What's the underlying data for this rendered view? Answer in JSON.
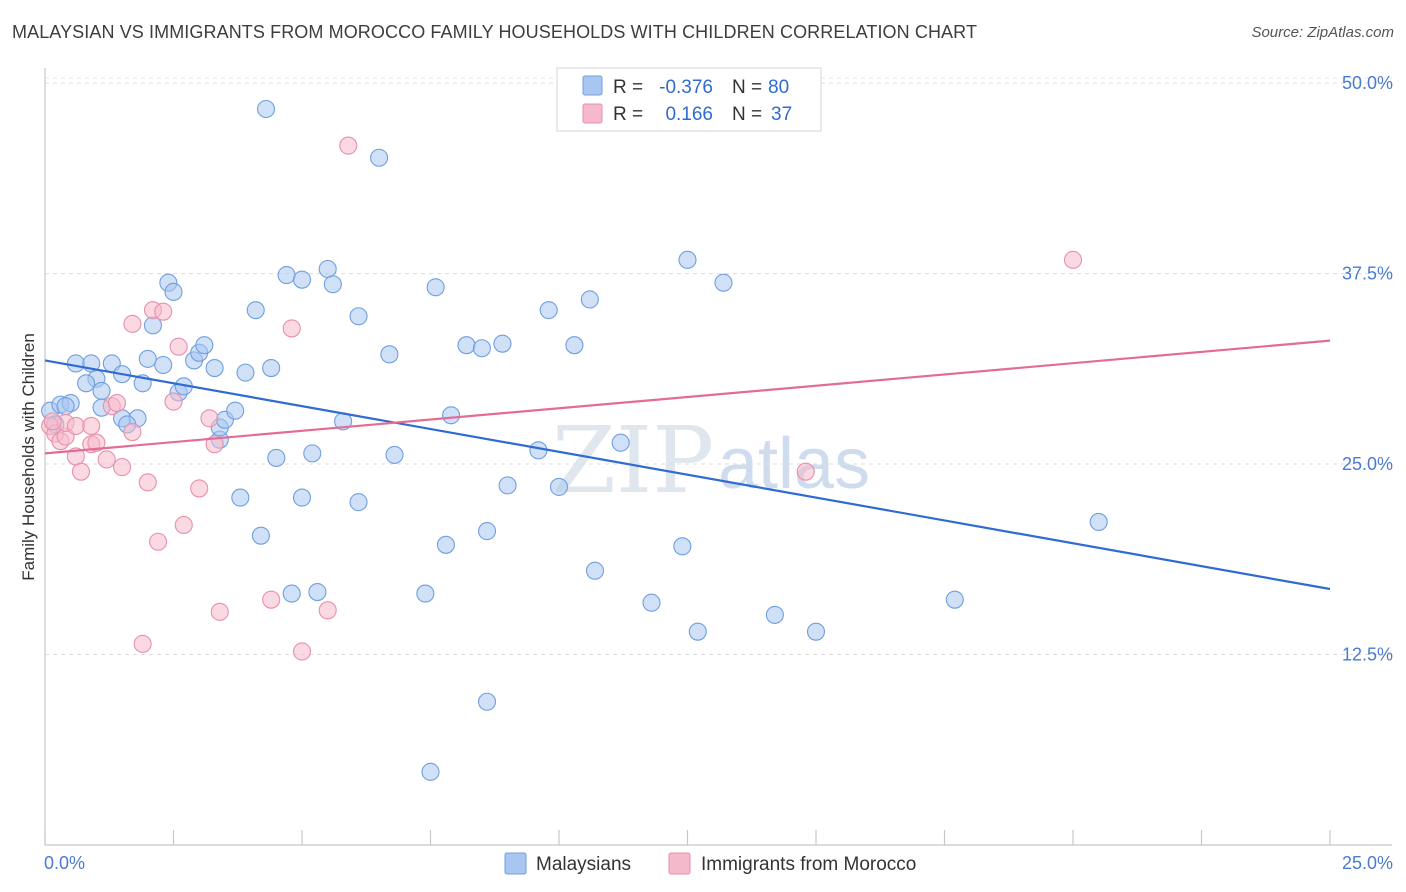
{
  "header": {
    "title": "MALAYSIAN VS IMMIGRANTS FROM MOROCCO FAMILY HOUSEHOLDS WITH CHILDREN CORRELATION CHART",
    "source": "Source: ZipAtlas.com"
  },
  "watermark": {
    "part1": "ZIP",
    "part2": "atlas"
  },
  "stats_box": {
    "rows": [
      {
        "r_label": "R =",
        "r_value": "-0.376",
        "n_label": "N =",
        "n_value": "80",
        "color": "#a9c6f0"
      },
      {
        "r_label": "R =",
        "r_value": "0.166",
        "n_label": "N =",
        "n_value": "37",
        "color": "#f6b9cb"
      }
    ]
  },
  "chart_data": {
    "type": "scatter",
    "title": "MALAYSIAN VS IMMIGRANTS FROM MOROCCO FAMILY HOUSEHOLDS WITH CHILDREN CORRELATION CHART",
    "xlabel": "",
    "ylabel": "Family Households with Children",
    "xlim": [
      0,
      25
    ],
    "ylim": [
      0,
      52.5
    ],
    "x_tick_labels": [
      "0.0%",
      "25.0%"
    ],
    "y_ticks": [
      {
        "value": 12.5,
        "label": "12.5%"
      },
      {
        "value": 25.0,
        "label": "25.0%"
      },
      {
        "value": 37.5,
        "label": "37.5%"
      },
      {
        "value": 50.0,
        "label": "50.0%"
      }
    ],
    "legend": [
      "Malaysians",
      "Immigrants from Morocco"
    ],
    "series": [
      {
        "name": "Malaysians",
        "color": "#a9c6f0",
        "stroke": "#6f9fe0",
        "trend": {
          "x": [
            0,
            25
          ],
          "y": [
            31.8,
            16.8
          ],
          "color": "#2f6bd1"
        },
        "points": [
          [
            0.1,
            28.5
          ],
          [
            0.3,
            28.9
          ],
          [
            0.5,
            29.0
          ],
          [
            0.4,
            28.8
          ],
          [
            0.6,
            31.6
          ],
          [
            0.9,
            31.6
          ],
          [
            1.0,
            30.6
          ],
          [
            1.3,
            31.6
          ],
          [
            0.8,
            30.3
          ],
          [
            1.1,
            29.8
          ],
          [
            1.1,
            28.7
          ],
          [
            1.5,
            30.9
          ],
          [
            1.9,
            30.3
          ],
          [
            1.5,
            28.0
          ],
          [
            1.8,
            28.0
          ],
          [
            2.1,
            34.1
          ],
          [
            2.0,
            31.9
          ],
          [
            2.3,
            31.5
          ],
          [
            2.4,
            36.9
          ],
          [
            2.5,
            36.3
          ],
          [
            2.6,
            29.7
          ],
          [
            2.7,
            30.1
          ],
          [
            2.9,
            31.8
          ],
          [
            3.0,
            32.3
          ],
          [
            3.1,
            32.8
          ],
          [
            3.3,
            31.3
          ],
          [
            3.4,
            26.6
          ],
          [
            3.4,
            27.4
          ],
          [
            3.5,
            27.9
          ],
          [
            3.7,
            28.5
          ],
          [
            3.8,
            22.8
          ],
          [
            3.9,
            31.0
          ],
          [
            4.1,
            35.1
          ],
          [
            4.2,
            20.3
          ],
          [
            4.3,
            48.3
          ],
          [
            4.4,
            31.3
          ],
          [
            4.5,
            25.4
          ],
          [
            4.7,
            37.4
          ],
          [
            4.8,
            16.5
          ],
          [
            5.0,
            37.1
          ],
          [
            5.0,
            22.8
          ],
          [
            5.2,
            25.7
          ],
          [
            5.3,
            16.6
          ],
          [
            5.5,
            37.8
          ],
          [
            5.6,
            36.8
          ],
          [
            5.8,
            27.8
          ],
          [
            6.1,
            34.7
          ],
          [
            6.1,
            22.5
          ],
          [
            6.5,
            45.1
          ],
          [
            6.7,
            32.2
          ],
          [
            6.8,
            25.6
          ],
          [
            7.4,
            16.5
          ],
          [
            7.5,
            4.8
          ],
          [
            7.6,
            36.6
          ],
          [
            7.8,
            19.7
          ],
          [
            7.9,
            28.2
          ],
          [
            8.2,
            32.8
          ],
          [
            8.5,
            32.6
          ],
          [
            8.6,
            20.6
          ],
          [
            8.6,
            9.4
          ],
          [
            8.9,
            32.9
          ],
          [
            9.0,
            23.6
          ],
          [
            9.6,
            25.9
          ],
          [
            9.8,
            35.1
          ],
          [
            10.0,
            23.5
          ],
          [
            10.3,
            32.8
          ],
          [
            10.6,
            35.8
          ],
          [
            10.7,
            18.0
          ],
          [
            11.2,
            26.4
          ],
          [
            11.8,
            15.9
          ],
          [
            12.4,
            19.6
          ],
          [
            12.5,
            38.4
          ],
          [
            12.7,
            14.0
          ],
          [
            13.2,
            36.9
          ],
          [
            14.2,
            15.1
          ],
          [
            15.0,
            14.0
          ],
          [
            17.7,
            16.1
          ],
          [
            20.5,
            21.2
          ],
          [
            0.2,
            27.6
          ],
          [
            1.6,
            27.6
          ]
        ]
      },
      {
        "name": "Immigrants from Morocco",
        "color": "#f6b9cb",
        "stroke": "#e98fab",
        "trend": {
          "x": [
            0,
            25
          ],
          "y": [
            25.7,
            33.1
          ],
          "color": "#e36c96"
        },
        "points": [
          [
            0.1,
            27.5
          ],
          [
            0.2,
            27.0
          ],
          [
            0.3,
            26.5
          ],
          [
            0.4,
            26.8
          ],
          [
            0.4,
            27.7
          ],
          [
            0.6,
            25.5
          ],
          [
            0.6,
            27.5
          ],
          [
            0.7,
            24.5
          ],
          [
            0.9,
            27.5
          ],
          [
            0.9,
            26.3
          ],
          [
            1.0,
            26.4
          ],
          [
            1.2,
            25.3
          ],
          [
            1.3,
            28.8
          ],
          [
            1.4,
            29.0
          ],
          [
            1.5,
            24.8
          ],
          [
            1.7,
            27.1
          ],
          [
            1.7,
            34.2
          ],
          [
            1.9,
            13.2
          ],
          [
            2.0,
            23.8
          ],
          [
            2.1,
            35.1
          ],
          [
            2.2,
            19.9
          ],
          [
            2.3,
            35.0
          ],
          [
            2.5,
            29.1
          ],
          [
            2.6,
            32.7
          ],
          [
            2.7,
            21.0
          ],
          [
            3.0,
            23.4
          ],
          [
            3.2,
            28.0
          ],
          [
            3.3,
            26.3
          ],
          [
            3.4,
            15.3
          ],
          [
            4.4,
            16.1
          ],
          [
            4.8,
            33.9
          ],
          [
            5.0,
            12.7
          ],
          [
            5.5,
            15.4
          ],
          [
            5.9,
            45.9
          ],
          [
            14.8,
            24.5
          ],
          [
            20.0,
            38.4
          ],
          [
            0.15,
            27.8
          ]
        ]
      }
    ]
  }
}
